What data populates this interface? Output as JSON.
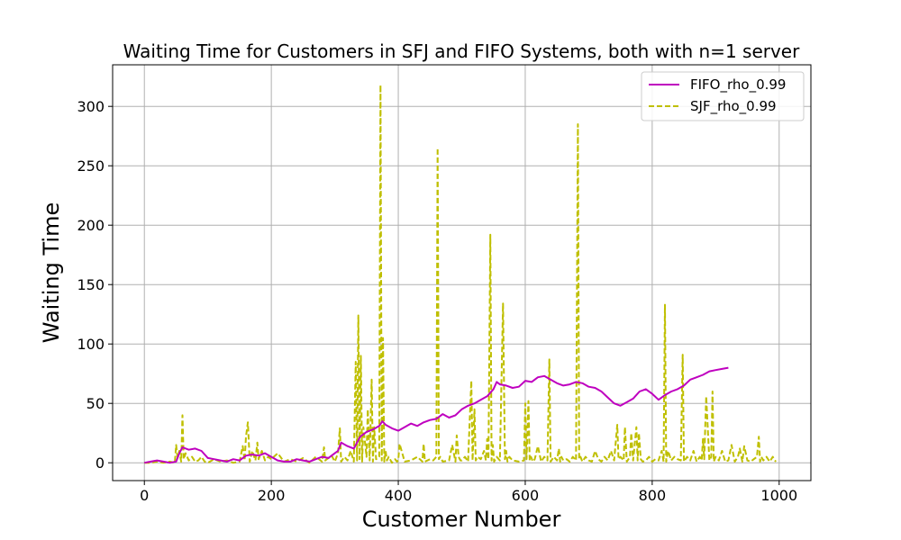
{
  "chart_data": {
    "type": "line",
    "title": "Waiting Time for Customers in SFJ and FIFO Systems, both with n=1 server",
    "xlabel": "Customer Number",
    "ylabel": "Waiting Time",
    "xlim": [
      -50,
      1050
    ],
    "ylim": [
      -15,
      335
    ],
    "xticks": [
      0,
      200,
      400,
      600,
      800,
      1000
    ],
    "yticks": [
      0,
      50,
      100,
      150,
      200,
      250,
      300
    ],
    "grid": true,
    "legend_position": "top-right",
    "series": [
      {
        "name": "FIFO_rho_0.99",
        "color": "#bf00bf",
        "style": "solid",
        "x": [
          0,
          10,
          20,
          30,
          40,
          50,
          55,
          60,
          70,
          80,
          90,
          100,
          110,
          120,
          130,
          140,
          150,
          160,
          170,
          180,
          190,
          200,
          210,
          220,
          230,
          240,
          250,
          260,
          270,
          280,
          290,
          300,
          305,
          310,
          320,
          330,
          340,
          350,
          360,
          370,
          375,
          380,
          390,
          400,
          410,
          420,
          430,
          440,
          450,
          460,
          470,
          480,
          490,
          500,
          510,
          520,
          530,
          540,
          550,
          555,
          560,
          570,
          580,
          590,
          600,
          610,
          620,
          630,
          640,
          650,
          660,
          670,
          680,
          690,
          700,
          710,
          720,
          730,
          740,
          750,
          760,
          770,
          780,
          790,
          800,
          810,
          820,
          830,
          840,
          850,
          860,
          870,
          880,
          890,
          900,
          910,
          920
        ],
        "values": [
          0,
          1,
          2,
          1,
          0,
          1,
          8,
          13,
          11,
          12,
          10,
          4,
          3,
          2,
          1,
          3,
          2,
          6,
          7,
          6,
          8,
          5,
          2,
          1,
          1,
          3,
          2,
          1,
          3,
          5,
          4,
          8,
          10,
          17,
          14,
          12,
          22,
          26,
          28,
          31,
          35,
          32,
          29,
          27,
          30,
          33,
          31,
          34,
          36,
          37,
          41,
          38,
          40,
          45,
          48,
          50,
          53,
          56,
          62,
          68,
          66,
          65,
          63,
          64,
          69,
          68,
          72,
          73,
          70,
          67,
          65,
          66,
          68,
          67,
          64,
          63,
          60,
          55,
          50,
          48,
          51,
          54,
          60,
          62,
          58,
          53,
          57,
          60,
          62,
          65,
          70,
          72,
          74,
          77,
          78,
          79,
          80
        ]
      },
      {
        "name": "SJF_rho_0.99",
        "color": "#bfbf00",
        "style": "dashed",
        "x": [
          0,
          10,
          20,
          30,
          40,
          48,
          50,
          52,
          55,
          58,
          60,
          62,
          65,
          70,
          75,
          80,
          85,
          90,
          95,
          100,
          110,
          120,
          130,
          140,
          150,
          155,
          158,
          160,
          163,
          166,
          170,
          175,
          178,
          180,
          185,
          190,
          195,
          200,
          210,
          220,
          230,
          240,
          250,
          260,
          270,
          280,
          283,
          285,
          290,
          295,
          300,
          305,
          308,
          310,
          315,
          320,
          325,
          330,
          333,
          335,
          337,
          339,
          341,
          343,
          345,
          350,
          352,
          355,
          358,
          360,
          362,
          365,
          370,
          372,
          374,
          376,
          378,
          380,
          382,
          385,
          390,
          395,
          398,
          400,
          402,
          410,
          420,
          430,
          438,
          440,
          442,
          450,
          455,
          460,
          462,
          464,
          466,
          470,
          480,
          485,
          490,
          492,
          495,
          498,
          500,
          505,
          510,
          515,
          517,
          520,
          522,
          525,
          530,
          535,
          538,
          540,
          542,
          545,
          547,
          549,
          551,
          555,
          560,
          565,
          568,
          570,
          572,
          575,
          580,
          590,
          598,
          600,
          602,
          605,
          607,
          609,
          612,
          615,
          620,
          625,
          630,
          635,
          638,
          640,
          645,
          650,
          653,
          655,
          657,
          660,
          665,
          670,
          675,
          680,
          683,
          685,
          687,
          690,
          695,
          700,
          705,
          710,
          715,
          720,
          725,
          730,
          735,
          740,
          745,
          747,
          750,
          755,
          757,
          760,
          765,
          767,
          770,
          775,
          777,
          779,
          782,
          785,
          790,
          795,
          800,
          805,
          810,
          815,
          818,
          820,
          822,
          825,
          830,
          835,
          840,
          845,
          848,
          850,
          855,
          860,
          865,
          870,
          875,
          878,
          880,
          882,
          885,
          890,
          893,
          895,
          897,
          900,
          905,
          910,
          915,
          920,
          925,
          930,
          935,
          938,
          942,
          945,
          950,
          955,
          960,
          965,
          968,
          970,
          972,
          975,
          980,
          985,
          990,
          993,
          995
        ],
        "values": [
          0,
          0,
          1,
          0,
          1,
          0,
          15,
          5,
          10,
          1,
          40,
          3,
          8,
          2,
          5,
          1,
          2,
          5,
          1,
          0,
          3,
          1,
          2,
          0,
          1,
          14,
          2,
          22,
          34,
          1,
          10,
          2,
          17,
          3,
          10,
          2,
          5,
          3,
          8,
          1,
          3,
          1,
          4,
          0,
          5,
          1,
          13,
          2,
          4,
          6,
          1,
          8,
          29,
          1,
          5,
          2,
          10,
          1,
          85,
          2,
          124,
          3,
          90,
          1,
          30,
          5,
          45,
          2,
          70,
          1,
          30,
          3,
          5,
          318,
          2,
          105,
          1,
          10,
          2,
          5,
          0,
          3,
          1,
          2,
          16,
          1,
          2,
          5,
          1,
          16,
          1,
          3,
          2,
          5,
          265,
          3,
          5,
          1,
          2,
          15,
          1,
          23,
          5,
          2,
          2,
          5,
          1,
          69,
          2,
          45,
          2,
          5,
          3,
          10,
          2,
          20,
          3,
          192,
          2,
          15,
          1,
          5,
          2,
          134,
          3,
          10,
          1,
          5,
          2,
          1,
          2,
          50,
          3,
          52,
          2,
          5,
          1,
          3,
          14,
          1,
          5,
          2,
          87,
          1,
          5,
          2,
          12,
          1,
          5,
          2,
          3,
          1,
          5,
          2,
          285,
          3,
          5,
          1,
          5,
          2,
          1,
          10,
          3,
          1,
          5,
          2,
          10,
          2,
          32,
          3,
          5,
          2,
          30,
          1,
          5,
          25,
          2,
          30,
          2,
          25,
          3,
          1,
          2,
          5,
          1,
          3,
          2,
          10,
          1,
          133,
          1,
          10,
          2,
          5,
          3,
          2,
          91,
          1,
          5,
          2,
          10,
          1,
          5,
          2,
          20,
          3,
          56,
          2,
          5,
          60,
          1,
          5,
          2,
          10,
          1,
          2,
          15,
          1,
          5,
          12,
          1,
          14,
          2,
          1,
          3,
          5,
          22,
          1,
          5,
          2,
          5,
          1,
          5,
          2,
          1
        ]
      }
    ]
  }
}
